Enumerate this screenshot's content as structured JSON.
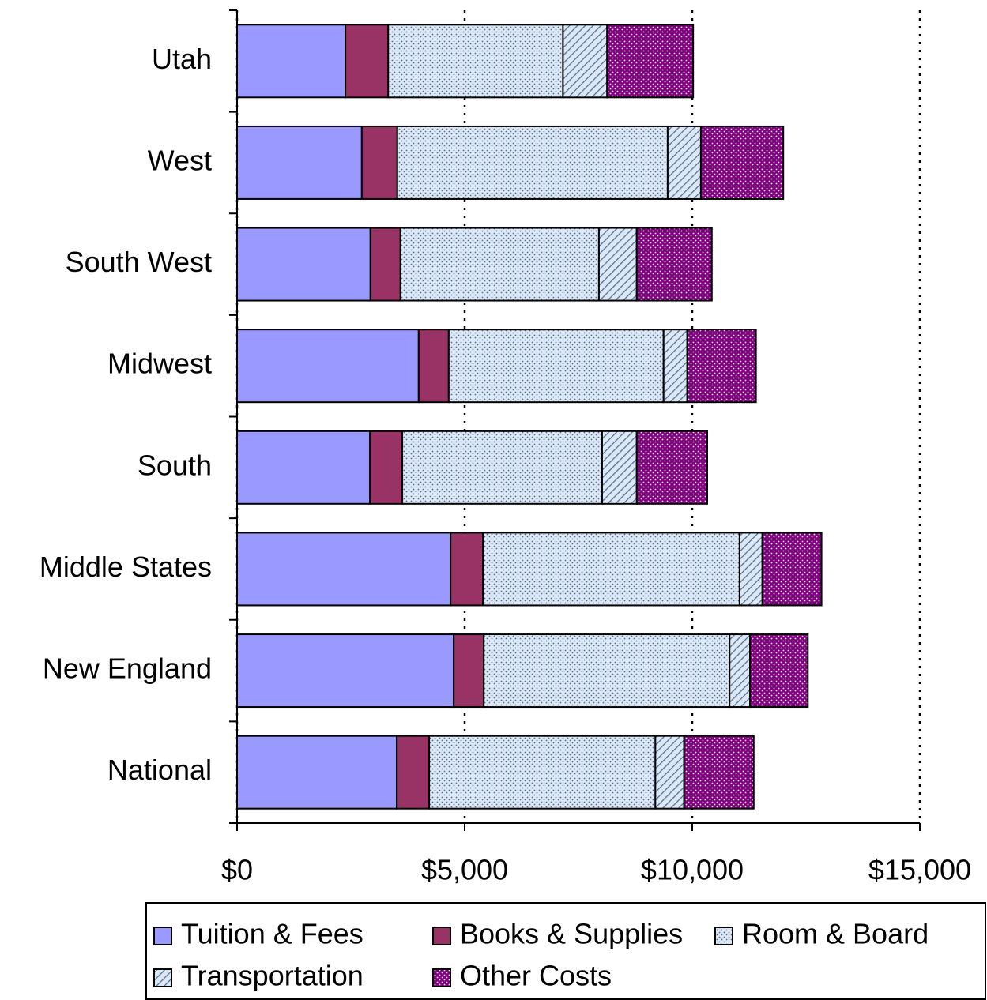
{
  "chart_data": {
    "type": "stacked_barh",
    "categories": [
      "Utah",
      "West",
      "South West",
      "Midwest",
      "South",
      "Middle States",
      "New England",
      "National"
    ],
    "series": [
      {
        "name": "Tuition & Fees",
        "color": "#9999ff",
        "pattern": "solid",
        "values": [
          2380,
          2740,
          2930,
          3990,
          2920,
          4690,
          4760,
          3510
        ]
      },
      {
        "name": "Books & Supplies",
        "color": "#993366",
        "pattern": "solid",
        "values": [
          940,
          780,
          660,
          660,
          710,
          710,
          660,
          710
        ]
      },
      {
        "name": "Room & Board",
        "color": "#dde8f4",
        "pattern": "dots",
        "values": [
          3840,
          5940,
          4360,
          4720,
          4390,
          5640,
          5400,
          4970
        ]
      },
      {
        "name": "Transportation",
        "color": "#dde8f4",
        "pattern": "hatch",
        "values": [
          970,
          730,
          830,
          520,
          760,
          500,
          450,
          630
        ]
      },
      {
        "name": "Other Costs",
        "color": "#800080",
        "pattern": "dots",
        "values": [
          1890,
          1810,
          1650,
          1510,
          1550,
          1300,
          1270,
          1530
        ]
      }
    ],
    "xlim": [
      0,
      15000
    ],
    "xticks": [
      {
        "value": 0,
        "label": "$0"
      },
      {
        "value": 5000,
        "label": "$5,000"
      },
      {
        "value": 10000,
        "label": "$10,000"
      },
      {
        "value": 15000,
        "label": "$15,000"
      }
    ],
    "grid": true,
    "legend": "bottom"
  }
}
